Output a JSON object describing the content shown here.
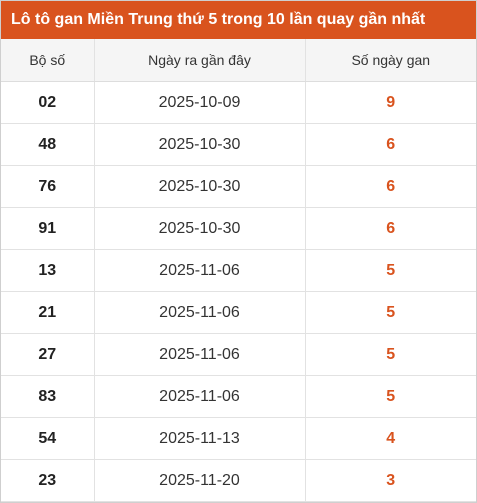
{
  "title": "Lô tô gan Miền Trung thứ 5 trong 10 lần quay gần nhất",
  "headers": {
    "number": "Bộ số",
    "last_date": "Ngày ra gần đây",
    "gap_days": "Số ngày gan"
  },
  "accent_color": "#d9531e",
  "rows": [
    {
      "number": "02",
      "date": "2025-10-09",
      "days": "9"
    },
    {
      "number": "48",
      "date": "2025-10-30",
      "days": "6"
    },
    {
      "number": "76",
      "date": "2025-10-30",
      "days": "6"
    },
    {
      "number": "91",
      "date": "2025-10-30",
      "days": "6"
    },
    {
      "number": "13",
      "date": "2025-11-06",
      "days": "5"
    },
    {
      "number": "21",
      "date": "2025-11-06",
      "days": "5"
    },
    {
      "number": "27",
      "date": "2025-11-06",
      "days": "5"
    },
    {
      "number": "83",
      "date": "2025-11-06",
      "days": "5"
    },
    {
      "number": "54",
      "date": "2025-11-13",
      "days": "4"
    },
    {
      "number": "23",
      "date": "2025-11-20",
      "days": "3"
    }
  ]
}
